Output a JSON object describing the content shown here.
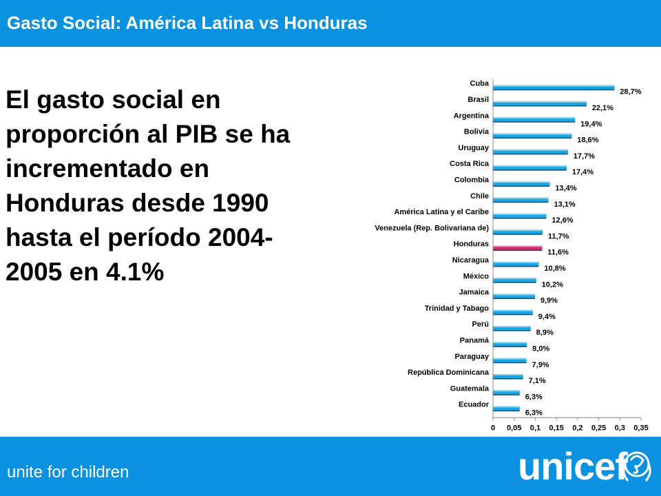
{
  "header": {
    "title": "Gasto Social: América Latina vs Honduras"
  },
  "headline": {
    "text": "El gasto social en proporción al PIB se ha incrementado en Honduras desde 1990 hasta el período 2004-2005 en 4.1%"
  },
  "footer": {
    "slogan": "unite for children",
    "logo_text": "unicef"
  },
  "colors": {
    "bar": "#1aa6e0",
    "highlight": "#d8246e",
    "brand_blue": "#0a91e0"
  },
  "chart_data": {
    "type": "bar",
    "orientation": "horizontal",
    "categories": [
      "Cuba",
      "Brasil",
      "Argentina",
      "Bolivia",
      "Uruguay",
      "Costa Rica",
      "Colombia",
      "Chile",
      "América Latina y el Caribe",
      "Venezuela (Rep. Bolivariana de)",
      "Honduras",
      "Nicaragua",
      "México",
      "Jamaica",
      "Trinidad y Tabago",
      "Perú",
      "Panamá",
      "Paraguay",
      "República Dominicana",
      "Guatemala",
      "Ecuador"
    ],
    "values": [
      0.287,
      0.221,
      0.194,
      0.186,
      0.177,
      0.174,
      0.134,
      0.131,
      0.126,
      0.117,
      0.116,
      0.108,
      0.102,
      0.099,
      0.094,
      0.089,
      0.08,
      0.079,
      0.071,
      0.063,
      0.063
    ],
    "data_labels": [
      "28,7%",
      "22,1%",
      "19,4%",
      "18,6%",
      "17,7%",
      "17,4%",
      "13,4%",
      "13,1%",
      "12,6%",
      "11,7%",
      "11,6%",
      "10,8%",
      "10,2%",
      "9,9%",
      "9,4%",
      "8,9%",
      "8,0%",
      "7,9%",
      "7,1%",
      "6,3%",
      "6,3%"
    ],
    "highlight": "Honduras",
    "xlim": [
      0,
      0.35
    ],
    "xticks": [
      0,
      0.05,
      0.1,
      0.15,
      0.2,
      0.25,
      0.3,
      0.35
    ],
    "xtick_labels": [
      "0",
      "0,05",
      "0,1",
      "0,15",
      "0,2",
      "0,25",
      "0,3",
      "0,35"
    ],
    "grid": false,
    "legend": false
  }
}
